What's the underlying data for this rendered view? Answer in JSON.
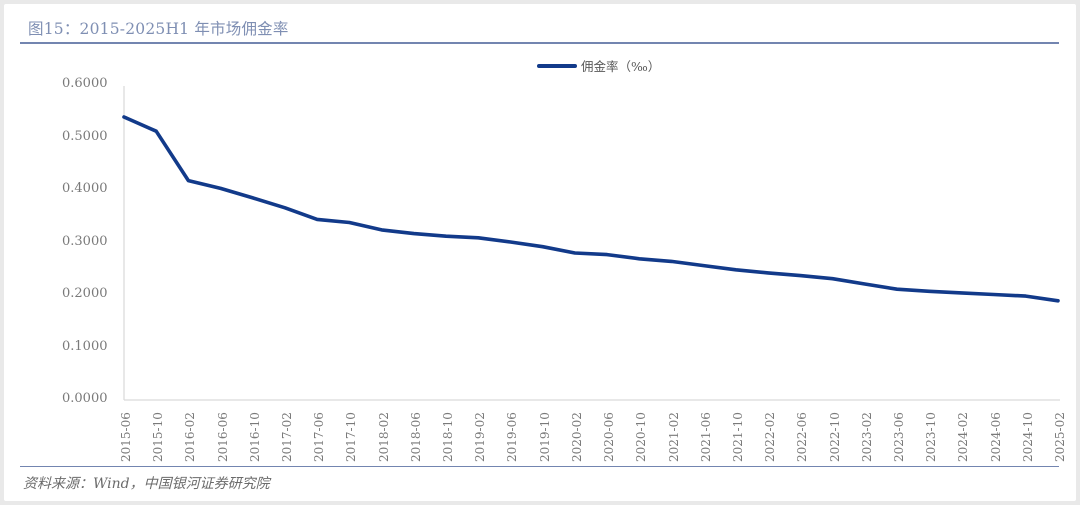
{
  "figure": {
    "title": "图15：2015-2025H1 年市场佣金率",
    "source": "资料来源：Wind，中国银河证券研究院"
  },
  "colors": {
    "line": "#123a8a",
    "title": "#7f8fb3",
    "rule": "#7385b0",
    "axis": "#d9d9d9",
    "tick_text": "#7a7a7a"
  },
  "chart_data": {
    "type": "line",
    "title": "2015-2025H1 年市场佣金率",
    "xlabel": "",
    "ylabel": "",
    "ylim": [
      0,
      0.6
    ],
    "yticks": [
      "0.0000",
      "0.1000",
      "0.2000",
      "0.3000",
      "0.4000",
      "0.5000",
      "0.6000"
    ],
    "grid": false,
    "legend_position": "top-center",
    "categories": [
      "2015-06",
      "2015-10",
      "2016-02",
      "2016-06",
      "2016-10",
      "2017-02",
      "2017-06",
      "2017-10",
      "2018-02",
      "2018-06",
      "2018-10",
      "2019-02",
      "2019-06",
      "2019-10",
      "2020-02",
      "2020-06",
      "2020-10",
      "2021-02",
      "2021-06",
      "2021-10",
      "2022-02",
      "2022-06",
      "2022-10",
      "2023-02",
      "2023-06",
      "2023-10",
      "2024-02",
      "2024-06",
      "2024-10",
      "2025-02"
    ],
    "series": [
      {
        "name": "佣金率（‰）",
        "values": [
          0.539,
          0.512,
          0.418,
          0.403,
          0.385,
          0.366,
          0.344,
          0.338,
          0.324,
          0.317,
          0.312,
          0.309,
          0.301,
          0.292,
          0.28,
          0.277,
          0.269,
          0.264,
          0.256,
          0.248,
          0.242,
          0.237,
          0.231,
          0.221,
          0.211,
          0.207,
          0.204,
          0.201,
          0.198,
          0.189
        ]
      }
    ]
  },
  "legend": {
    "label": "佣金率（‰）"
  }
}
